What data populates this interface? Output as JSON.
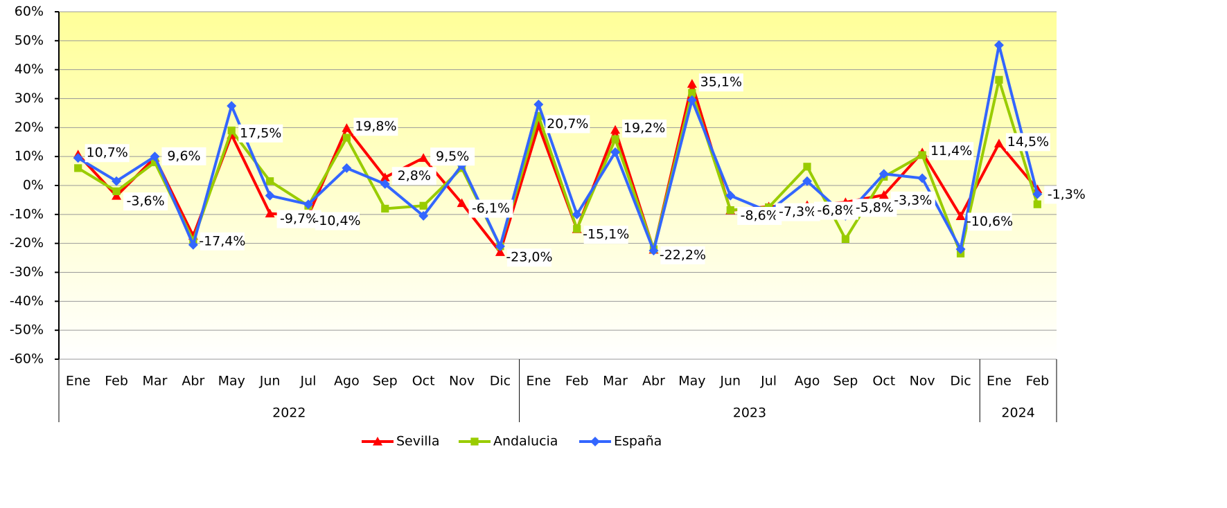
{
  "chart_data": {
    "type": "line",
    "groups": [
      {
        "label": "2022",
        "categories": [
          "Ene",
          "Feb",
          "Mar",
          "Abr",
          "May",
          "Jun",
          "Jul",
          "Ago",
          "Sep",
          "Oct",
          "Nov",
          "Dic"
        ]
      },
      {
        "label": "2023",
        "categories": [
          "Ene",
          "Feb",
          "Mar",
          "Abr",
          "May",
          "Jun",
          "Jul",
          "Ago",
          "Sep",
          "Oct",
          "Nov",
          "Dic"
        ]
      },
      {
        "label": "2024",
        "categories": [
          "Ene",
          "Feb"
        ]
      }
    ],
    "series": [
      {
        "name": "Sevilla",
        "color": "#ff0000",
        "marker": "triangle",
        "values": [
          10.7,
          -3.6,
          9.6,
          -17.4,
          17.5,
          -9.7,
          -10.4,
          19.8,
          2.8,
          9.5,
          -6.1,
          -23.0,
          20.7,
          -15.1,
          19.2,
          -22.2,
          35.1,
          -8.6,
          -7.3,
          -6.8,
          -5.8,
          -3.3,
          11.4,
          -10.6,
          14.5,
          -1.3
        ],
        "value_labels": [
          "10,7%",
          "-3,6%",
          "9,6%",
          "-17,4%",
          "17,5%",
          "-9,7%",
          "-10,4%",
          "19,8%",
          "2,8%",
          "9,5%",
          "-6,1%",
          "-23,0%",
          "20,7%",
          "-15,1%",
          "19,2%",
          "-22,2%",
          "35,1%",
          "-8,6%",
          "-7,3%",
          "-6,8%",
          "-5,8%",
          "-3,3%",
          "11,4%",
          "-10,6%",
          "14,5%",
          "-1,3%"
        ]
      },
      {
        "name": "Andalucia",
        "color": "#99cc00",
        "marker": "square",
        "values": [
          6,
          -2,
          8,
          -19,
          19,
          1.5,
          -7,
          16.5,
          -8,
          -7,
          6,
          -21,
          24,
          -15,
          16,
          -22,
          32,
          -8.5,
          -7.5,
          6.5,
          -18.5,
          3,
          10.5,
          -23.5,
          36.5,
          -6.5
        ]
      },
      {
        "name": "España",
        "color": "#3366ff",
        "marker": "diamond",
        "values": [
          9.5,
          1.5,
          10,
          -20.5,
          27.5,
          -3.5,
          -6.5,
          6,
          0.5,
          -10.5,
          7,
          -21,
          28,
          -10,
          11.5,
          -22.5,
          29.5,
          -3.5,
          -9,
          1.5,
          -10.5,
          4,
          2.5,
          -22,
          48.5,
          -3
        ]
      }
    ],
    "ylim": [
      -60,
      60
    ],
    "yticks": [
      {
        "value": -60,
        "label": "-60%"
      },
      {
        "value": -50,
        "label": "-50%"
      },
      {
        "value": -40,
        "label": "-40%"
      },
      {
        "value": -30,
        "label": "-30%"
      },
      {
        "value": -20,
        "label": "-20%"
      },
      {
        "value": -10,
        "label": "-10%"
      },
      {
        "value": 0,
        "label": "0%"
      },
      {
        "value": 10,
        "label": "10%"
      },
      {
        "value": 20,
        "label": "20%"
      },
      {
        "value": 30,
        "label": "30%"
      },
      {
        "value": 40,
        "label": "40%"
      },
      {
        "value": 50,
        "label": "50%"
      },
      {
        "value": 60,
        "label": "60%"
      }
    ],
    "grid": true,
    "legend": "bottom"
  }
}
